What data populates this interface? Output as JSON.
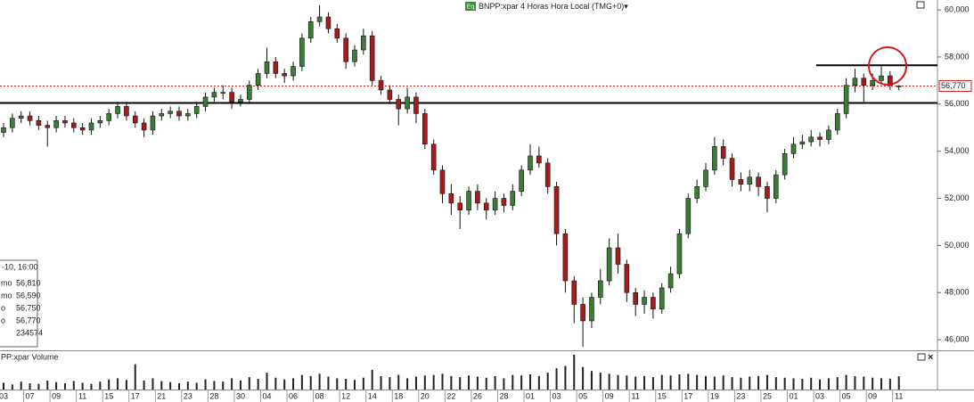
{
  "chart_data": {
    "type": "candlestick",
    "title": "BNPP:xpar 4 Horas Hora Local (TMG+0)▾",
    "title_icon": "Eq",
    "volume_label": "PP:xpar Volume",
    "categories": [
      "03",
      null,
      null,
      "07",
      null,
      null,
      "09",
      null,
      null,
      "11",
      null,
      null,
      "15",
      null,
      null,
      "17",
      null,
      null,
      "21",
      null,
      null,
      "23",
      null,
      null,
      "28",
      null,
      null,
      "30",
      null,
      null,
      "04",
      null,
      null,
      "06",
      null,
      null,
      "08",
      null,
      null,
      "12",
      null,
      null,
      "14",
      null,
      null,
      "18",
      null,
      null,
      "20",
      null,
      null,
      "22",
      null,
      null,
      "26",
      null,
      null,
      "28",
      null,
      null,
      "01",
      null,
      null,
      "03",
      null,
      null,
      "05",
      null,
      null,
      "09",
      null,
      null,
      "11",
      null,
      null,
      "15",
      null,
      null,
      "17",
      null,
      null,
      "19",
      null,
      null,
      "23",
      null,
      null,
      "25",
      null,
      null,
      "01",
      null,
      null,
      "03",
      null,
      null,
      "05",
      null,
      null,
      "09",
      null,
      null,
      "11"
    ],
    "open": [
      54800,
      55000,
      55400,
      55500,
      55300,
      55100,
      55000,
      55300,
      55200,
      55000,
      54900,
      55200,
      55300,
      55600,
      55900,
      55500,
      55200,
      54900,
      55500,
      55600,
      55700,
      55500,
      55600,
      55900,
      56300,
      56500,
      56500,
      56100,
      56200,
      56800,
      57300,
      57800,
      57300,
      57200,
      57600,
      58800,
      59500,
      59700,
      59200,
      58800,
      57800,
      58300,
      58900,
      57000,
      56600,
      56200,
      55800,
      56300,
      55600,
      54300,
      53200,
      52200,
      51800,
      51500,
      52300,
      51800,
      51500,
      52000,
      51700,
      52300,
      53200,
      53800,
      53500,
      52500,
      50500,
      48500,
      47500,
      46800,
      47800,
      48500,
      49900,
      49200,
      48000,
      47500,
      47800,
      47300,
      48200,
      48800,
      50500,
      52000,
      52500,
      53200,
      54200,
      53700,
      52800,
      52600,
      52900,
      52500,
      52000,
      53000,
      53900,
      54300,
      54400,
      54600,
      54500,
      54900,
      55600,
      56800,
      57100,
      56800,
      57000,
      57200,
      56750
    ],
    "high": [
      55200,
      55600,
      55700,
      55700,
      55500,
      55300,
      55500,
      55500,
      55400,
      55200,
      55400,
      55500,
      55800,
      56100,
      56100,
      55700,
      55400,
      55700,
      55800,
      55900,
      55900,
      55800,
      56100,
      56500,
      56700,
      56800,
      56700,
      56400,
      57000,
      57500,
      58400,
      58000,
      57500,
      57800,
      59000,
      59700,
      60200,
      59900,
      59400,
      59000,
      58500,
      59200,
      59100,
      57200,
      56800,
      56400,
      56700,
      56500,
      55800,
      54500,
      53400,
      52600,
      52100,
      52500,
      52600,
      52000,
      52300,
      52200,
      52600,
      53400,
      54300,
      54200,
      53700,
      52700,
      50700,
      48700,
      47800,
      48000,
      49000,
      50300,
      50500,
      49400,
      48200,
      48100,
      48000,
      48400,
      49100,
      50700,
      52200,
      52800,
      53500,
      54600,
      54500,
      53900,
      53100,
      53200,
      53100,
      52700,
      53200,
      54100,
      54600,
      54700,
      54900,
      54800,
      55100,
      55800,
      57100,
      57500,
      57300,
      57300,
      57600,
      57400,
      56810
    ],
    "low": [
      54600,
      54800,
      55200,
      55100,
      54900,
      54200,
      54800,
      55000,
      54800,
      54700,
      54700,
      55000,
      55100,
      55400,
      55300,
      55000,
      54600,
      54700,
      55300,
      55400,
      55300,
      55300,
      55400,
      55700,
      56100,
      56200,
      55800,
      55900,
      56000,
      56600,
      57100,
      57100,
      56900,
      57000,
      57400,
      58600,
      59300,
      59000,
      58600,
      57500,
      57600,
      58100,
      56800,
      56400,
      56000,
      55100,
      55600,
      55200,
      54100,
      53000,
      51800,
      51300,
      50700,
      51300,
      51500,
      51100,
      51300,
      51400,
      51500,
      52100,
      53000,
      53300,
      52200,
      50000,
      48000,
      46700,
      45700,
      46500,
      47500,
      48300,
      48800,
      47600,
      47000,
      47100,
      46900,
      47100,
      48000,
      48600,
      50300,
      51800,
      52300,
      53000,
      53400,
      52500,
      52300,
      52300,
      52100,
      51400,
      51800,
      52800,
      53700,
      54100,
      54200,
      54200,
      54300,
      54700,
      55400,
      56500,
      56100,
      56600,
      56900,
      56600,
      56590
    ],
    "close": [
      55000,
      55400,
      55500,
      55300,
      55100,
      55000,
      55300,
      55200,
      55000,
      54900,
      55200,
      55300,
      55600,
      55900,
      55500,
      55200,
      54900,
      55500,
      55600,
      55700,
      55500,
      55600,
      55900,
      56300,
      56500,
      56500,
      56100,
      56200,
      56800,
      57300,
      57800,
      57300,
      57200,
      57600,
      58800,
      59500,
      59700,
      59200,
      58800,
      57800,
      58300,
      58900,
      57000,
      56600,
      56200,
      55800,
      56300,
      55600,
      54300,
      53200,
      52200,
      51800,
      51500,
      52300,
      51800,
      51500,
      52000,
      51700,
      52300,
      53200,
      53800,
      53500,
      52500,
      50500,
      48500,
      47500,
      46800,
      47800,
      48500,
      49900,
      49200,
      48000,
      47500,
      47800,
      47300,
      48200,
      48800,
      50500,
      52000,
      52500,
      53200,
      54200,
      53700,
      52800,
      52600,
      52900,
      52500,
      52000,
      53000,
      53900,
      54300,
      54400,
      54600,
      54500,
      54900,
      55600,
      56800,
      57100,
      56800,
      57000,
      57200,
      56800,
      56770
    ],
    "volume": [
      120000,
      90000,
      140000,
      110000,
      100000,
      160000,
      130000,
      110000,
      150000,
      120000,
      100000,
      140000,
      180000,
      200000,
      170000,
      450000,
      160000,
      200000,
      150000,
      130000,
      110000,
      140000,
      120000,
      180000,
      150000,
      140000,
      200000,
      160000,
      220000,
      190000,
      300000,
      210000,
      180000,
      200000,
      260000,
      240000,
      280000,
      230000,
      200000,
      190000,
      170000,
      210000,
      350000,
      240000,
      220000,
      260000,
      200000,
      230000,
      250000,
      260000,
      280000,
      240000,
      220000,
      250000,
      230000,
      210000,
      240000,
      200000,
      260000,
      250000,
      270000,
      240000,
      300000,
      380000,
      420000,
      620000,
      400000,
      330000,
      300000,
      280000,
      260000,
      250000,
      230000,
      240000,
      220000,
      260000,
      250000,
      270000,
      280000,
      260000,
      240000,
      230000,
      250000,
      220000,
      210000,
      230000,
      240000,
      260000,
      220000,
      210000,
      200000,
      190000,
      210000,
      180000,
      200000,
      220000,
      260000,
      240000,
      230000,
      210000,
      200000,
      190000,
      234574
    ],
    "up_color": "#3b7d35",
    "down_color": "#a51c1c",
    "ylim": [
      45550,
      60420
    ],
    "yticks": [
      {
        "value": 46000,
        "label": "46,000"
      },
      {
        "value": 48000,
        "label": "48,000"
      },
      {
        "value": 50000,
        "label": "50,000"
      },
      {
        "value": 52000,
        "label": "52,000"
      },
      {
        "value": 54000,
        "label": "54,000"
      },
      {
        "value": 56000,
        "label": "56,000"
      },
      {
        "value": 58000,
        "label": "58,000"
      },
      {
        "value": 60000,
        "label": "60,000"
      }
    ],
    "volume_ylim": [
      0,
      650000
    ],
    "hlines": [
      56050,
      57650
    ],
    "last_price": {
      "value": 56770,
      "label": "56,770"
    },
    "info_box": {
      "date": "-10, 16:00",
      "rows": [
        {
          "label": "mo",
          "value": "56,810"
        },
        {
          "label": "mo",
          "value": "56,590"
        },
        {
          "label": "o",
          "value": "56,750"
        },
        {
          "label": "o",
          "value": "56,770"
        },
        {
          "value": "234574"
        }
      ]
    }
  }
}
